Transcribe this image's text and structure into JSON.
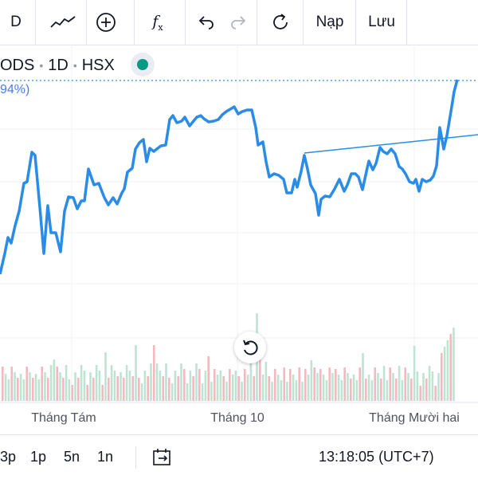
{
  "toolbar": {
    "interval_label": "D",
    "load_label": "Nạp",
    "save_label": "Lưu"
  },
  "symbol": {
    "name": "ODS",
    "interval": "1D",
    "exchange": "HSX",
    "change_fragment": "94%)"
  },
  "colors": {
    "line": "#2a8ce6",
    "volume_up": "#bfe3d3",
    "volume_down": "#f5b8bf",
    "status": "#089981"
  },
  "xaxis": {
    "labels": [
      "Tháng Tám",
      "Tháng 10",
      "Tháng Mười hai"
    ]
  },
  "bottom": {
    "ranges": [
      "3p",
      "1p",
      "5n",
      "1n"
    ],
    "time": "13:18:05 (UTC+7)"
  }
}
